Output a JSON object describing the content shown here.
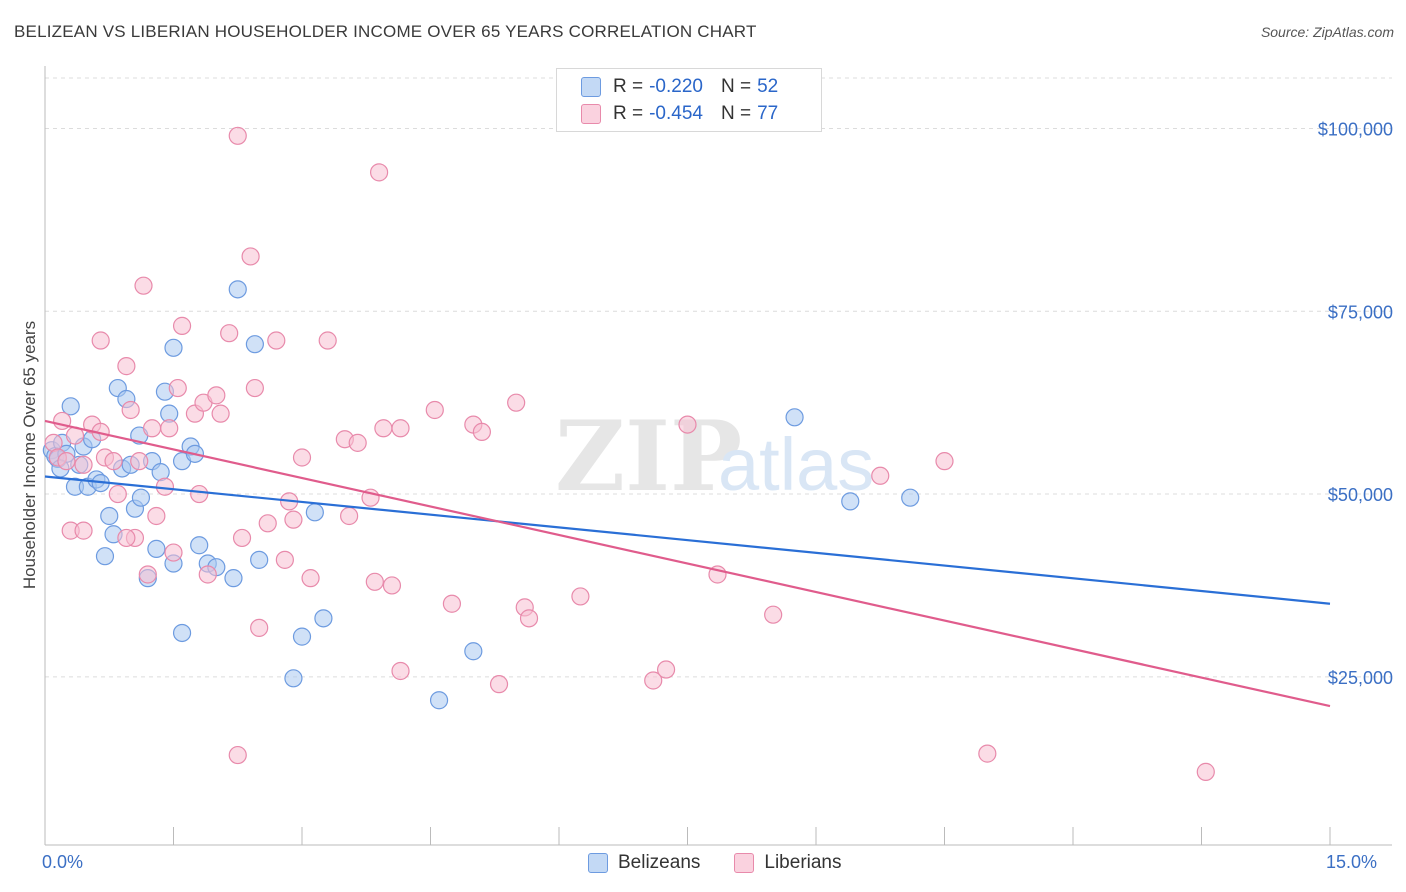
{
  "title": "BELIZEAN VS LIBERIAN HOUSEHOLDER INCOME OVER 65 YEARS CORRELATION CHART",
  "source": "Source: ZipAtlas.com",
  "watermark": {
    "zip": "ZIP",
    "atlas": "atlas"
  },
  "legend": {
    "rows": [
      {
        "r_label": "R = ",
        "r_value": "-0.220",
        "n_label": "N = ",
        "n_value": "52",
        "color": "#a9c8f0",
        "border": "#6d9be0"
      },
      {
        "r_label": "R = ",
        "r_value": "-0.454",
        "n_label": "N = ",
        "n_value": "77",
        "color": "#f7c0d2",
        "border": "#e88aab"
      }
    ]
  },
  "bottom_legend": [
    "Belizeans",
    "Liberians"
  ],
  "chart_data": {
    "type": "scatter",
    "title": "BELIZEAN VS LIBERIAN HOUSEHOLDER INCOME OVER 65 YEARS CORRELATION CHART",
    "xlabel": "",
    "ylabel": "Householder Income Over 65 years",
    "xlim": [
      0,
      15
    ],
    "ylim": [
      2000,
      108000
    ],
    "x_tick_labels": [
      {
        "value": 0,
        "label": "0.0%"
      },
      {
        "value": 15,
        "label": "15.0%"
      }
    ],
    "y_ticks": [
      {
        "value": 25000,
        "label": "$25,000"
      },
      {
        "value": 50000,
        "label": "$50,000"
      },
      {
        "value": 75000,
        "label": "$75,000"
      },
      {
        "value": 100000,
        "label": "$100,000"
      }
    ],
    "grid": true,
    "series": [
      {
        "name": "Belizeans",
        "color": "#6d9be0",
        "fill": "#a9c8f0",
        "trend": {
          "x": [
            0,
            15
          ],
          "y": [
            52400,
            35000
          ],
          "color": "#2a6fd6"
        },
        "points": [
          [
            0.08,
            56000
          ],
          [
            0.12,
            55200
          ],
          [
            0.15,
            54800
          ],
          [
            0.2,
            57000
          ],
          [
            0.25,
            55500
          ],
          [
            0.3,
            62000
          ],
          [
            0.35,
            51000
          ],
          [
            0.4,
            54000
          ],
          [
            0.45,
            56500
          ],
          [
            0.5,
            51000
          ],
          [
            0.55,
            57500
          ],
          [
            0.6,
            52000
          ],
          [
            0.65,
            51500
          ],
          [
            0.7,
            41500
          ],
          [
            0.75,
            47000
          ],
          [
            0.8,
            44500
          ],
          [
            0.85,
            64500
          ],
          [
            0.9,
            53500
          ],
          [
            0.95,
            63000
          ],
          [
            1.0,
            54000
          ],
          [
            1.05,
            48000
          ],
          [
            1.1,
            58000
          ],
          [
            1.12,
            49500
          ],
          [
            1.2,
            38500
          ],
          [
            1.25,
            54500
          ],
          [
            1.3,
            42500
          ],
          [
            1.35,
            53000
          ],
          [
            1.4,
            64000
          ],
          [
            1.45,
            61000
          ],
          [
            1.5,
            40500
          ],
          [
            1.5,
            70000
          ],
          [
            1.6,
            54500
          ],
          [
            1.6,
            31000
          ],
          [
            1.7,
            56500
          ],
          [
            1.75,
            55500
          ],
          [
            1.8,
            43000
          ],
          [
            1.9,
            40500
          ],
          [
            2.0,
            40000
          ],
          [
            2.2,
            38500
          ],
          [
            2.25,
            78000
          ],
          [
            2.45,
            70500
          ],
          [
            2.5,
            41000
          ],
          [
            2.9,
            24800
          ],
          [
            3.0,
            30500
          ],
          [
            3.15,
            47500
          ],
          [
            3.25,
            33000
          ],
          [
            4.6,
            21800
          ],
          [
            5.0,
            28500
          ],
          [
            8.75,
            60500
          ],
          [
            9.4,
            49000
          ],
          [
            10.1,
            49500
          ],
          [
            0.18,
            53500
          ]
        ]
      },
      {
        "name": "Liberians",
        "color": "#e88aab",
        "fill": "#f7c0d2",
        "trend": {
          "x": [
            0,
            15
          ],
          "y": [
            60000,
            21000
          ],
          "color": "#e05c8c"
        },
        "points": [
          [
            0.1,
            57000
          ],
          [
            0.15,
            55000
          ],
          [
            0.2,
            60000
          ],
          [
            0.25,
            54500
          ],
          [
            0.3,
            45000
          ],
          [
            0.35,
            58000
          ],
          [
            0.45,
            54000
          ],
          [
            0.55,
            59500
          ],
          [
            0.65,
            58500
          ],
          [
            0.65,
            71000
          ],
          [
            0.7,
            55000
          ],
          [
            0.8,
            54500
          ],
          [
            0.85,
            50000
          ],
          [
            0.95,
            67500
          ],
          [
            1.0,
            61500
          ],
          [
            1.05,
            44000
          ],
          [
            1.1,
            54500
          ],
          [
            1.15,
            78500
          ],
          [
            1.2,
            39000
          ],
          [
            1.25,
            59000
          ],
          [
            1.3,
            47000
          ],
          [
            1.4,
            51000
          ],
          [
            1.45,
            59000
          ],
          [
            1.5,
            42000
          ],
          [
            1.55,
            64500
          ],
          [
            1.6,
            73000
          ],
          [
            1.75,
            61000
          ],
          [
            1.8,
            50000
          ],
          [
            1.85,
            62500
          ],
          [
            1.9,
            39000
          ],
          [
            2.0,
            63500
          ],
          [
            2.05,
            61000
          ],
          [
            2.15,
            72000
          ],
          [
            2.25,
            14300
          ],
          [
            2.3,
            44000
          ],
          [
            2.4,
            82500
          ],
          [
            2.45,
            64500
          ],
          [
            2.5,
            31700
          ],
          [
            2.6,
            46000
          ],
          [
            2.7,
            71000
          ],
          [
            2.8,
            41000
          ],
          [
            2.85,
            49000
          ],
          [
            2.9,
            46500
          ],
          [
            3.0,
            55000
          ],
          [
            3.1,
            38500
          ],
          [
            3.3,
            71000
          ],
          [
            3.5,
            57500
          ],
          [
            3.55,
            47000
          ],
          [
            3.65,
            57000
          ],
          [
            3.8,
            49500
          ],
          [
            3.85,
            38000
          ],
          [
            3.95,
            59000
          ],
          [
            4.05,
            37500
          ],
          [
            4.15,
            59000
          ],
          [
            4.15,
            25800
          ],
          [
            4.55,
            61500
          ],
          [
            4.75,
            35000
          ],
          [
            5.0,
            59500
          ],
          [
            5.1,
            58500
          ],
          [
            5.3,
            24000
          ],
          [
            5.5,
            62500
          ],
          [
            5.6,
            34500
          ],
          [
            5.65,
            33000
          ],
          [
            6.25,
            36000
          ],
          [
            7.1,
            24500
          ],
          [
            7.25,
            26000
          ],
          [
            7.5,
            59500
          ],
          [
            7.85,
            39000
          ],
          [
            8.5,
            33500
          ],
          [
            9.75,
            52500
          ],
          [
            10.5,
            54500
          ],
          [
            11.0,
            14500
          ],
          [
            13.55,
            12000
          ],
          [
            2.25,
            99000
          ],
          [
            3.9,
            94000
          ],
          [
            0.45,
            45000
          ],
          [
            0.95,
            44000
          ]
        ]
      }
    ]
  }
}
